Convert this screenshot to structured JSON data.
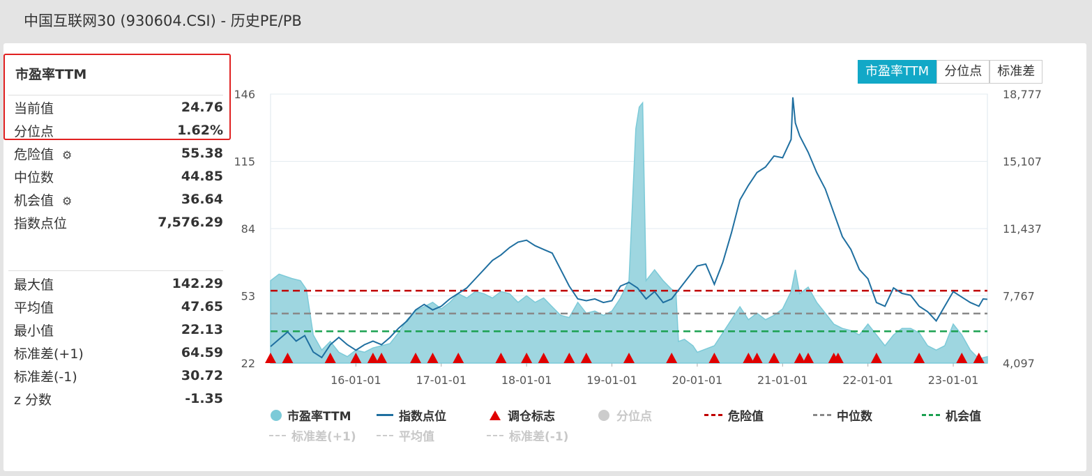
{
  "page_title": "中国互联网30 (930604.CSI) - 历史PE/PB",
  "panel": {
    "title": "市盈率TTM",
    "rows_top": [
      {
        "label": "当前值",
        "value": "24.76",
        "gear": false
      },
      {
        "label": "分位点",
        "value": "1.62%",
        "gear": false
      },
      {
        "label": "危险值",
        "value": "55.38",
        "gear": true
      },
      {
        "label": "中位数",
        "value": "44.85",
        "gear": false
      },
      {
        "label": "机会值",
        "value": "36.64",
        "gear": true
      },
      {
        "label": "指数点位",
        "value": "7,576.29",
        "gear": false
      }
    ],
    "rows_bottom": [
      {
        "label": "最大值",
        "value": "142.29"
      },
      {
        "label": "平均值",
        "value": "47.65"
      },
      {
        "label": "最小值",
        "value": "22.13"
      },
      {
        "label": "标准差(+1)",
        "value": "64.59"
      },
      {
        "label": "标准差(-1)",
        "value": "30.72"
      },
      {
        "label": "z 分数",
        "value": "-1.35"
      }
    ]
  },
  "tabs": [
    "市盈率TTM",
    "分位点",
    "标准差"
  ],
  "colors": {
    "pe_area": "#9ed6e0",
    "pe_line": "#7ccad8",
    "index_line": "#1f6fa0",
    "marker": "#e00000",
    "danger": "#c00000",
    "median": "#888888",
    "opportunity": "#1aa050"
  },
  "legend": {
    "row1": [
      "市盈率TTM",
      "指数点位",
      "调仓标志",
      "分位点",
      "危险值",
      "中位数",
      "机会值"
    ],
    "row2": [
      "标准差(+1)",
      "平均值",
      "标准差(-1)"
    ]
  },
  "chart_data": {
    "type": "area",
    "y_left": {
      "ticks": [
        "22",
        "53",
        "84",
        "115",
        "146"
      ],
      "range": [
        22,
        146
      ]
    },
    "y_right": {
      "ticks": [
        "4,097",
        "7,767",
        "11,437",
        "15,107",
        "18,777"
      ],
      "range": [
        4097,
        18777
      ]
    },
    "x_ticks": [
      "16-01-01",
      "17-01-01",
      "18-01-01",
      "19-01-01",
      "20-01-01",
      "21-01-01",
      "22-01-01",
      "23-01-01"
    ],
    "x_range_years": [
      2015.0,
      2023.4
    ],
    "reference_lines": {
      "danger": 55.38,
      "median": 44.85,
      "opportunity": 36.64
    },
    "pe_series": [
      [
        2015.0,
        60
      ],
      [
        2015.1,
        63
      ],
      [
        2015.25,
        61
      ],
      [
        2015.35,
        60
      ],
      [
        2015.42,
        56
      ],
      [
        2015.5,
        35
      ],
      [
        2015.6,
        28
      ],
      [
        2015.7,
        32
      ],
      [
        2015.8,
        27
      ],
      [
        2015.9,
        25
      ],
      [
        2016.0,
        28
      ],
      [
        2016.1,
        27
      ],
      [
        2016.2,
        29
      ],
      [
        2016.3,
        30
      ],
      [
        2016.4,
        31
      ],
      [
        2016.5,
        36
      ],
      [
        2016.6,
        42
      ],
      [
        2016.7,
        46
      ],
      [
        2016.8,
        48
      ],
      [
        2016.9,
        50
      ],
      [
        2017.0,
        47
      ],
      [
        2017.1,
        50
      ],
      [
        2017.2,
        54
      ],
      [
        2017.3,
        52
      ],
      [
        2017.4,
        55
      ],
      [
        2017.5,
        54
      ],
      [
        2017.6,
        52
      ],
      [
        2017.7,
        55
      ],
      [
        2017.8,
        54
      ],
      [
        2017.9,
        50
      ],
      [
        2018.0,
        53
      ],
      [
        2018.1,
        50
      ],
      [
        2018.2,
        52
      ],
      [
        2018.3,
        48
      ],
      [
        2018.4,
        44
      ],
      [
        2018.5,
        43
      ],
      [
        2018.6,
        50
      ],
      [
        2018.7,
        45
      ],
      [
        2018.8,
        46
      ],
      [
        2018.9,
        44
      ],
      [
        2019.0,
        46
      ],
      [
        2019.1,
        52
      ],
      [
        2019.2,
        60
      ],
      [
        2019.28,
        130
      ],
      [
        2019.32,
        140
      ],
      [
        2019.36,
        142
      ],
      [
        2019.4,
        60
      ],
      [
        2019.5,
        65
      ],
      [
        2019.6,
        60
      ],
      [
        2019.7,
        56
      ],
      [
        2019.75,
        55
      ],
      [
        2019.78,
        32
      ],
      [
        2019.85,
        33
      ],
      [
        2019.95,
        30
      ],
      [
        2020.0,
        27
      ],
      [
        2020.2,
        30
      ],
      [
        2020.4,
        42
      ],
      [
        2020.5,
        48
      ],
      [
        2020.6,
        42
      ],
      [
        2020.7,
        45
      ],
      [
        2020.8,
        42
      ],
      [
        2020.9,
        44
      ],
      [
        2021.0,
        47
      ],
      [
        2021.1,
        55
      ],
      [
        2021.15,
        65
      ],
      [
        2021.2,
        54
      ],
      [
        2021.3,
        57
      ],
      [
        2021.4,
        50
      ],
      [
        2021.5,
        45
      ],
      [
        2021.6,
        40
      ],
      [
        2021.7,
        38
      ],
      [
        2021.8,
        37
      ],
      [
        2021.9,
        35
      ],
      [
        2022.0,
        40
      ],
      [
        2022.1,
        35
      ],
      [
        2022.2,
        30
      ],
      [
        2022.3,
        35
      ],
      [
        2022.4,
        38
      ],
      [
        2022.5,
        38
      ],
      [
        2022.6,
        36
      ],
      [
        2022.7,
        30
      ],
      [
        2022.8,
        28
      ],
      [
        2022.9,
        30
      ],
      [
        2023.0,
        40
      ],
      [
        2023.1,
        35
      ],
      [
        2023.2,
        28
      ],
      [
        2023.3,
        24
      ],
      [
        2023.4,
        25
      ]
    ],
    "index_series": [
      [
        2015.0,
        5000
      ],
      [
        2015.1,
        5400
      ],
      [
        2015.2,
        5800
      ],
      [
        2015.3,
        5300
      ],
      [
        2015.4,
        5600
      ],
      [
        2015.5,
        4700
      ],
      [
        2015.6,
        4400
      ],
      [
        2015.7,
        5100
      ],
      [
        2015.8,
        5500
      ],
      [
        2015.9,
        5100
      ],
      [
        2016.0,
        4800
      ],
      [
        2016.1,
        5100
      ],
      [
        2016.2,
        5300
      ],
      [
        2016.3,
        5100
      ],
      [
        2016.4,
        5500
      ],
      [
        2016.5,
        6000
      ],
      [
        2016.6,
        6400
      ],
      [
        2016.7,
        7000
      ],
      [
        2016.8,
        7300
      ],
      [
        2016.9,
        7000
      ],
      [
        2017.0,
        7200
      ],
      [
        2017.1,
        7600
      ],
      [
        2017.2,
        7900
      ],
      [
        2017.3,
        8200
      ],
      [
        2017.4,
        8700
      ],
      [
        2017.5,
        9200
      ],
      [
        2017.6,
        9700
      ],
      [
        2017.7,
        10000
      ],
      [
        2017.8,
        10400
      ],
      [
        2017.9,
        10700
      ],
      [
        2018.0,
        10800
      ],
      [
        2018.1,
        10500
      ],
      [
        2018.2,
        10300
      ],
      [
        2018.3,
        10100
      ],
      [
        2018.4,
        9200
      ],
      [
        2018.5,
        8300
      ],
      [
        2018.6,
        7600
      ],
      [
        2018.7,
        7500
      ],
      [
        2018.8,
        7600
      ],
      [
        2018.9,
        7400
      ],
      [
        2019.0,
        7500
      ],
      [
        2019.1,
        8300
      ],
      [
        2019.2,
        8500
      ],
      [
        2019.3,
        8200
      ],
      [
        2019.4,
        7600
      ],
      [
        2019.5,
        8000
      ],
      [
        2019.6,
        7400
      ],
      [
        2019.7,
        7600
      ],
      [
        2019.8,
        8200
      ],
      [
        2019.9,
        8800
      ],
      [
        2020.0,
        9400
      ],
      [
        2020.1,
        9500
      ],
      [
        2020.2,
        8400
      ],
      [
        2020.3,
        9600
      ],
      [
        2020.4,
        11200
      ],
      [
        2020.5,
        13000
      ],
      [
        2020.6,
        13800
      ],
      [
        2020.7,
        14500
      ],
      [
        2020.8,
        14800
      ],
      [
        2020.9,
        15400
      ],
      [
        2021.0,
        15300
      ],
      [
        2021.1,
        16300
      ],
      [
        2021.12,
        18600
      ],
      [
        2021.15,
        17200
      ],
      [
        2021.2,
        16500
      ],
      [
        2021.3,
        15600
      ],
      [
        2021.4,
        14500
      ],
      [
        2021.5,
        13600
      ],
      [
        2021.6,
        12300
      ],
      [
        2021.7,
        11000
      ],
      [
        2021.8,
        10300
      ],
      [
        2021.9,
        9200
      ],
      [
        2022.0,
        8700
      ],
      [
        2022.1,
        7400
      ],
      [
        2022.2,
        7200
      ],
      [
        2022.3,
        8200
      ],
      [
        2022.4,
        7900
      ],
      [
        2022.5,
        7800
      ],
      [
        2022.6,
        7200
      ],
      [
        2022.7,
        6900
      ],
      [
        2022.8,
        6400
      ],
      [
        2022.9,
        7200
      ],
      [
        2023.0,
        8000
      ],
      [
        2023.1,
        7700
      ],
      [
        2023.2,
        7400
      ],
      [
        2023.3,
        7200
      ],
      [
        2023.35,
        7600
      ],
      [
        2023.4,
        7576
      ]
    ],
    "rebalance_markers_years": [
      2015.0,
      2015.2,
      2015.7,
      2016.0,
      2016.2,
      2016.3,
      2016.7,
      2016.9,
      2017.2,
      2017.7,
      2018.0,
      2018.2,
      2018.5,
      2018.7,
      2019.2,
      2019.7,
      2020.2,
      2020.6,
      2020.7,
      2020.9,
      2021.2,
      2021.3,
      2021.6,
      2021.65,
      2022.1,
      2022.6,
      2023.1,
      2023.3
    ]
  }
}
